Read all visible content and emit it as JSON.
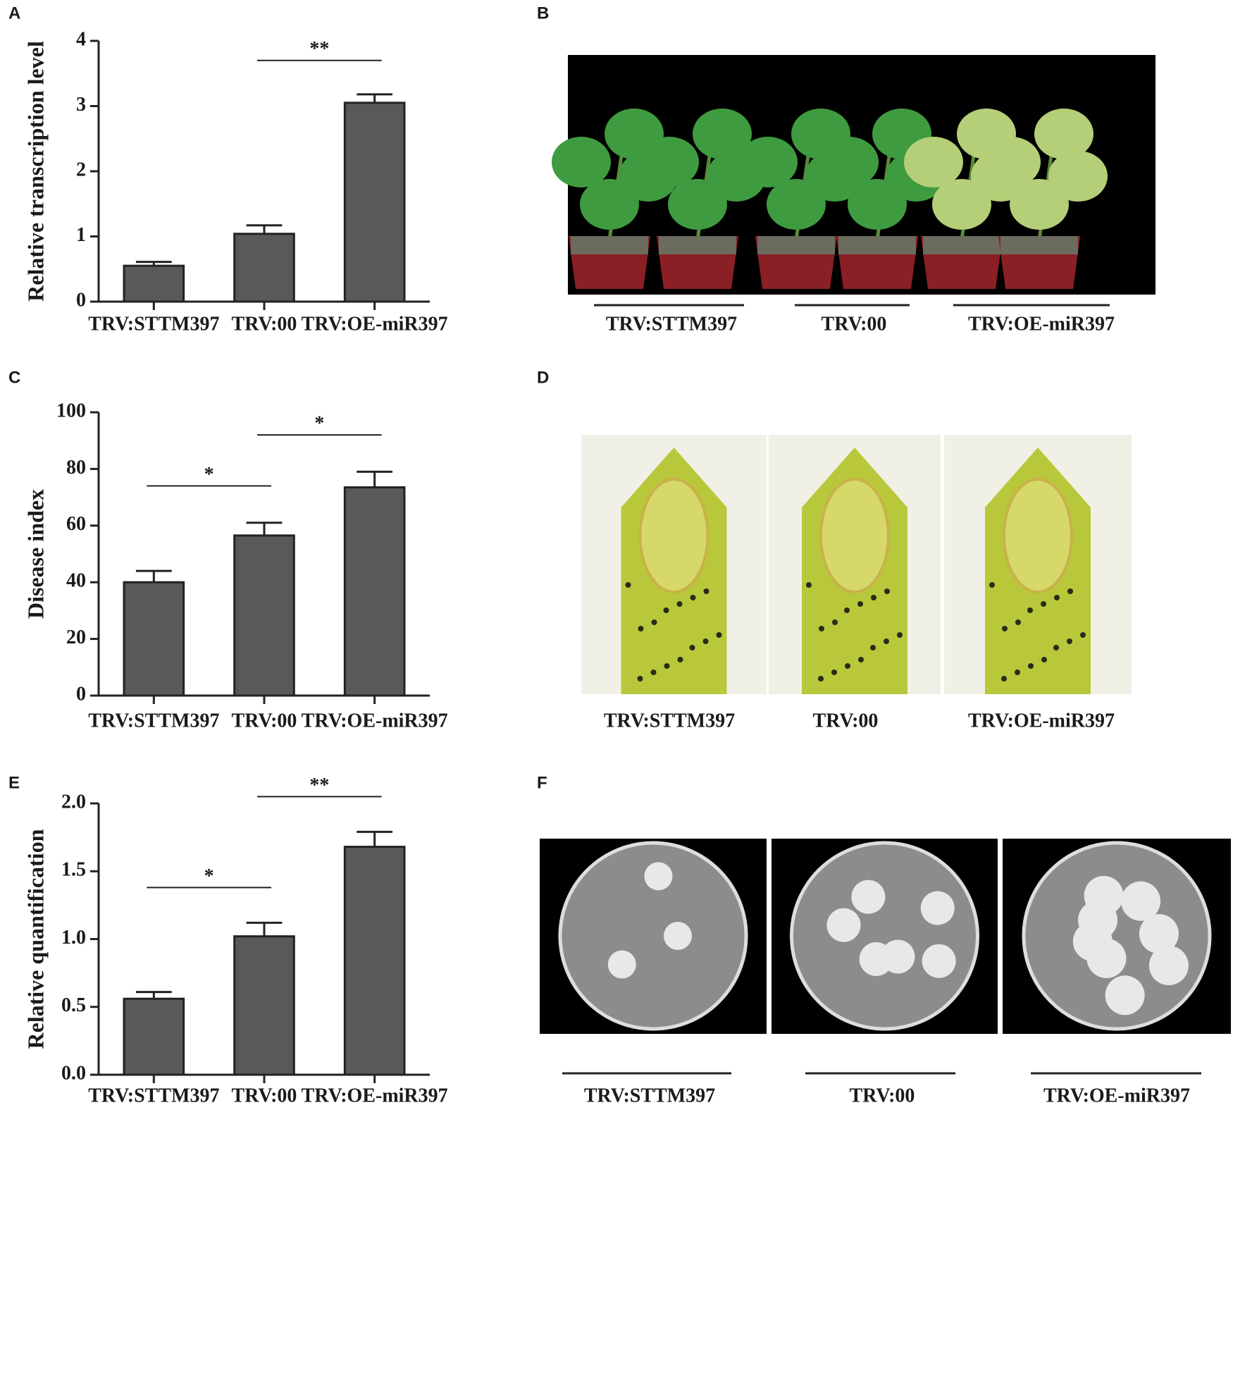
{
  "chart_data": [
    {
      "type": "bar",
      "panel": "A",
      "ylabel": "Relative transcription level",
      "categories": [
        "TRV:STTM397",
        "TRV:00",
        "TRV:OE-miR397"
      ],
      "values": [
        0.55,
        1.04,
        3.05
      ],
      "errors": [
        0.06,
        0.13,
        0.13
      ],
      "color": "#595959",
      "ylim": [
        0,
        4
      ],
      "yticks": [
        0,
        1,
        2,
        3,
        4
      ],
      "annotations": [
        {
          "text": "**",
          "between": [
            "TRV:00",
            "TRV:OE-miR397"
          ]
        }
      ]
    },
    {
      "type": "bar",
      "panel": "C",
      "ylabel": "Disease index",
      "categories": [
        "TRV:STTM397",
        "TRV:00",
        "TRV:OE-miR397"
      ],
      "values": [
        40,
        56.5,
        73.5
      ],
      "errors": [
        4,
        4.5,
        5.5
      ],
      "color": "#595959",
      "ylim": [
        0,
        100
      ],
      "yticks": [
        0,
        20,
        40,
        60,
        80,
        100
      ],
      "annotations": [
        {
          "text": "*",
          "between": [
            "TRV:STTM397",
            "TRV:00"
          ]
        },
        {
          "text": "*",
          "between": [
            "TRV:00",
            "TRV:OE-miR397"
          ]
        }
      ]
    },
    {
      "type": "bar",
      "panel": "E",
      "ylabel": "Relative quantification",
      "categories": [
        "TRV:STTM397",
        "TRV:00",
        "TRV:OE-miR397"
      ],
      "values": [
        0.56,
        1.02,
        1.68
      ],
      "errors": [
        0.05,
        0.1,
        0.11
      ],
      "color": "#595959",
      "ylim": [
        0,
        2
      ],
      "yticks": [
        {
          "value": 0,
          "label": "0.0"
        },
        {
          "value": 0.5,
          "label": "0.5"
        },
        {
          "value": 1,
          "label": "1.0"
        },
        {
          "value": 1.5,
          "label": "1.5"
        },
        {
          "value": 2,
          "label": "2.0"
        }
      ],
      "annotations": [
        {
          "text": "*",
          "between": [
            "TRV:STTM397",
            "TRV:00"
          ]
        },
        {
          "text": "**",
          "between": [
            "TRV:00",
            "TRV:OE-miR397"
          ]
        }
      ]
    }
  ],
  "photo_panels": [
    {
      "panel": "B",
      "labels": [
        "TRV:STTM397",
        "TRV:00",
        "TRV:OE-miR397"
      ]
    },
    {
      "panel": "D",
      "labels": [
        "TRV:STTM397",
        "TRV:00",
        "TRV:OE-miR397"
      ]
    },
    {
      "panel": "F",
      "labels": [
        "TRV:STTM397",
        "TRV:00",
        "TRV:OE-miR397"
      ]
    }
  ]
}
